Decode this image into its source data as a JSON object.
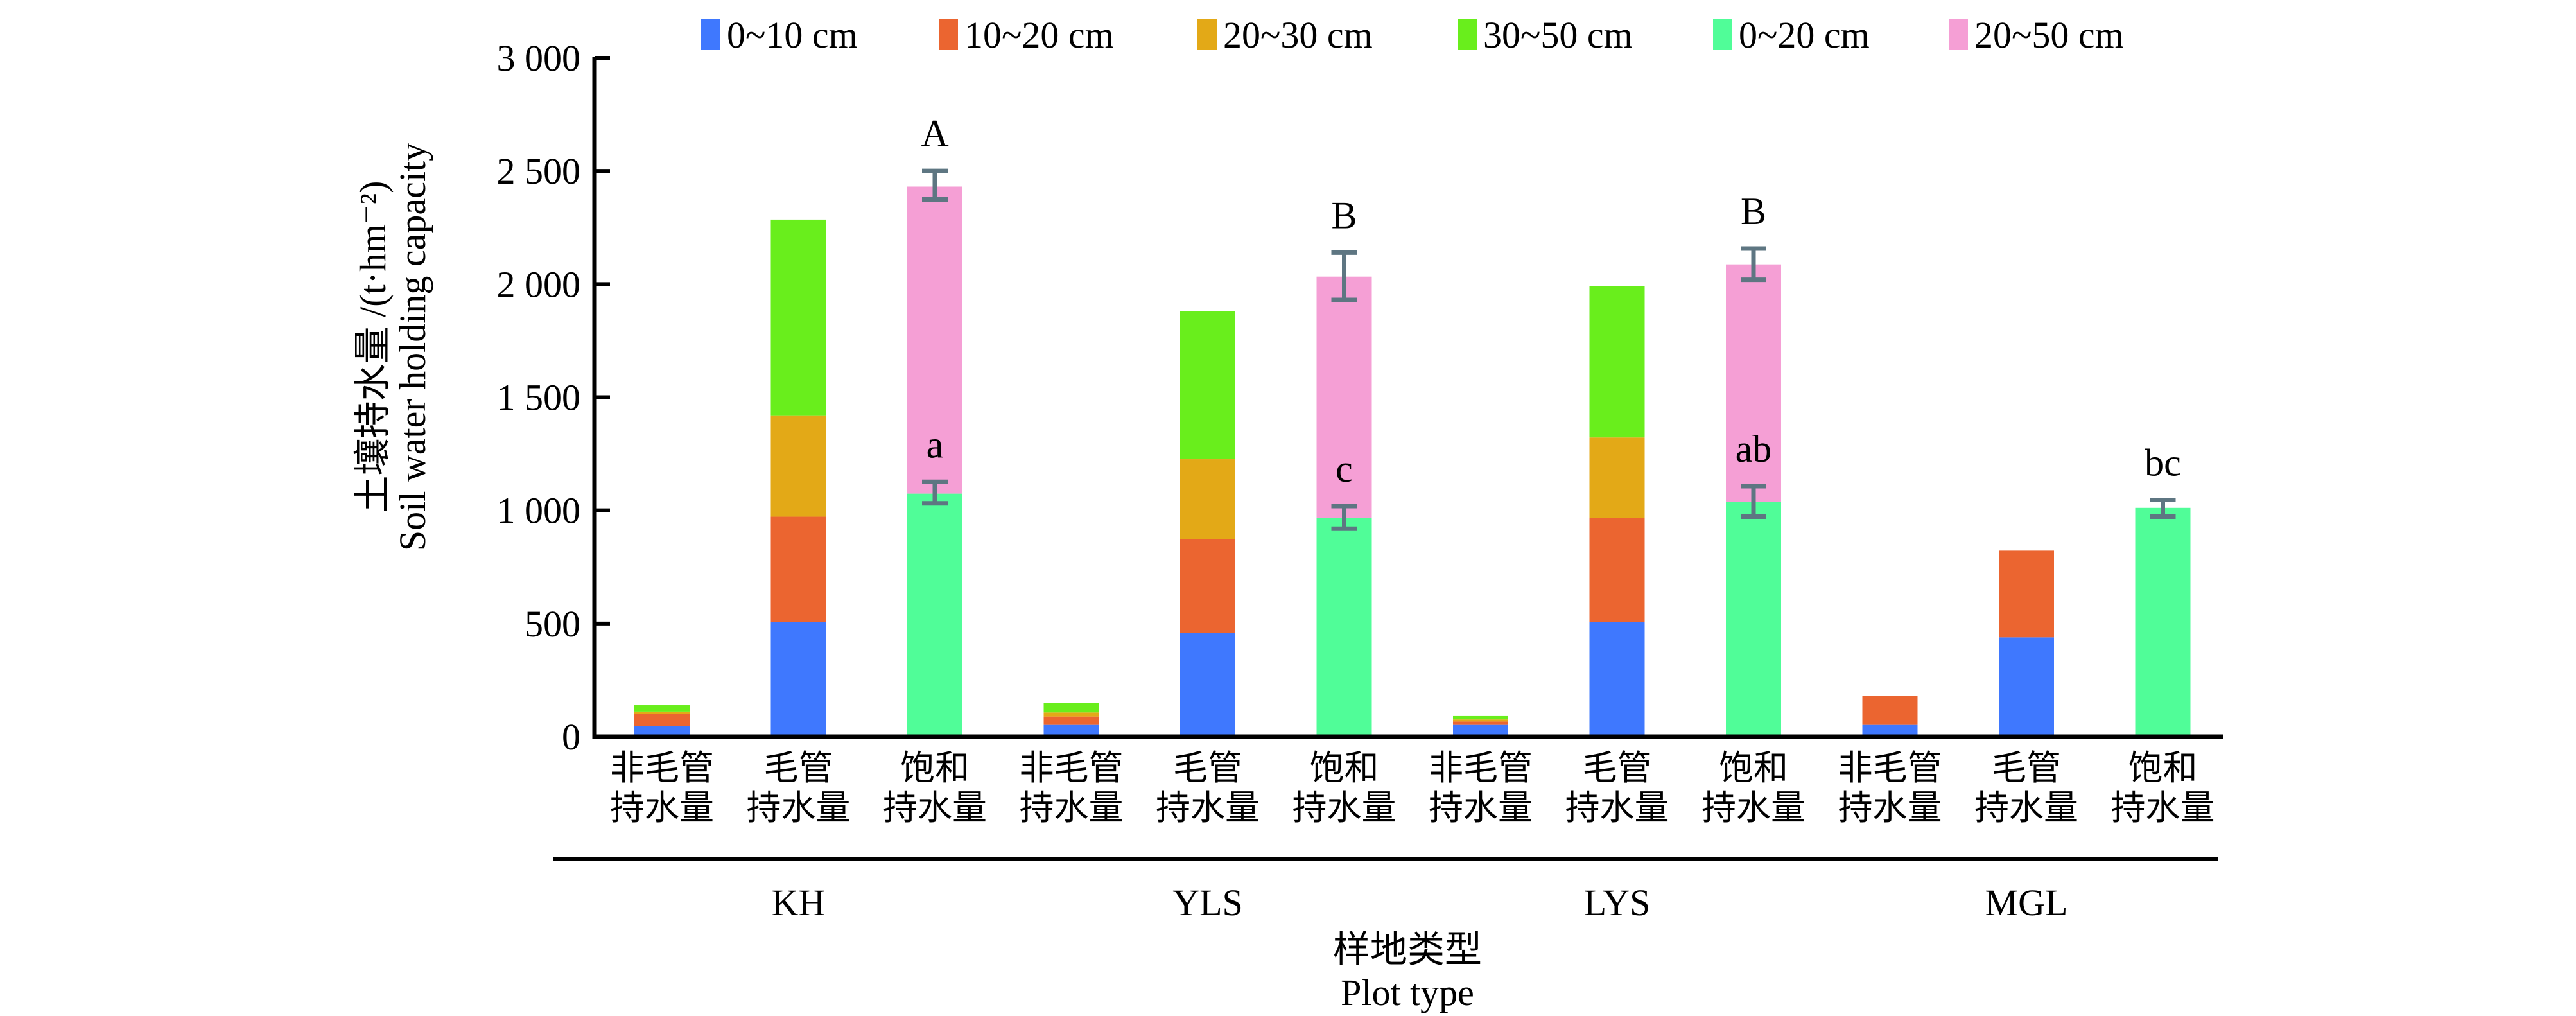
{
  "chart_data": {
    "type": "bar",
    "stacked": true,
    "title": "",
    "ylabel_cn": "土壤持水量 /(t·hm⁻²)",
    "ylabel_en": "Soil water holding capacity",
    "xlabel_cn": "样地类型",
    "xlabel_en": "Plot type",
    "ylim": [
      0,
      3000
    ],
    "yticks": [
      0,
      500,
      1000,
      1500,
      2000,
      2500,
      3000
    ],
    "ytick_labels": [
      "0",
      "500",
      "1 000",
      "1 500",
      "2 000",
      "2 500",
      "3 000"
    ],
    "grid": false,
    "legend_position": "top",
    "legend": [
      {
        "name": "0~10 cm",
        "color": "#3F78FE"
      },
      {
        "name": "10~20 cm",
        "color": "#EB6530"
      },
      {
        "name": "20~30 cm",
        "color": "#E3A917"
      },
      {
        "name": "30~50 cm",
        "color": "#69EE1C"
      },
      {
        "name": "0~20 cm",
        "color": "#50FD98"
      },
      {
        "name": "20~50 cm",
        "color": "#F59FD5"
      }
    ],
    "category_types": [
      {
        "line1": "非毛管",
        "line2": "持水量"
      },
      {
        "line1": "毛管",
        "line2": "持水量"
      },
      {
        "line1": "饱和",
        "line2": "持水量"
      }
    ],
    "groups": [
      {
        "name": "KH",
        "bars": [
          {
            "type": "非毛管持水量",
            "segments": {
              "0~10 cm": 46,
              "10~20 cm": 56,
              "20~30 cm": 9,
              "30~50 cm": 28
            }
          },
          {
            "type": "毛管持水量",
            "segments": {
              "0~10 cm": 506,
              "10~20 cm": 466,
              "20~30 cm": 448,
              "30~50 cm": 865
            }
          },
          {
            "type": "饱和持水量",
            "segments": {
              "0~20 cm": 1074,
              "20~50 cm": 1357
            },
            "errors": {
              "0~20 cm": [
                1031,
                1126
              ],
              "20~50 cm": [
                2374,
                2500
              ]
            },
            "sig_lower": "a",
            "sig_upper": "A"
          }
        ]
      },
      {
        "name": "YLS",
        "bars": [
          {
            "type": "非毛管持水量",
            "segments": {
              "0~10 cm": 52,
              "10~20 cm": 37,
              "20~30 cm": 18,
              "30~50 cm": 41
            }
          },
          {
            "type": "毛管持水量",
            "segments": {
              "0~10 cm": 457,
              "10~20 cm": 415,
              "20~30 cm": 354,
              "30~50 cm": 654
            }
          },
          {
            "type": "饱和持水量",
            "segments": {
              "0~20 cm": 967,
              "20~50 cm": 1066
            },
            "errors": {
              "0~20 cm": [
                919,
                1019
              ],
              "20~50 cm": [
                1930,
                2139
              ]
            },
            "sig_lower": "c",
            "sig_upper": "B"
          }
        ]
      },
      {
        "name": "LYS",
        "bars": [
          {
            "type": "非毛管持水量",
            "segments": {
              "0~10 cm": 52,
              "10~20 cm": 15,
              "20~30 cm": 9,
              "30~50 cm": 15
            }
          },
          {
            "type": "毛管持水量",
            "segments": {
              "0~10 cm": 507,
              "10~20 cm": 460,
              "20~30 cm": 355,
              "30~50 cm": 669
            }
          },
          {
            "type": "饱和持水量",
            "segments": {
              "0~20 cm": 1037,
              "20~50 cm": 1050
            },
            "errors": {
              "0~20 cm": [
                972,
                1107
              ],
              "20~50 cm": [
                2019,
                2157
              ]
            },
            "sig_lower": "ab",
            "sig_upper": "B"
          }
        ]
      },
      {
        "name": "MGL",
        "bars": [
          {
            "type": "非毛管持水量",
            "segments": {
              "0~10 cm": 52,
              "10~20 cm": 129
            }
          },
          {
            "type": "毛管持水量",
            "segments": {
              "0~10 cm": 439,
              "10~20 cm": 383
            }
          },
          {
            "type": "饱和持水量",
            "segments": {
              "0~20 cm": 1011
            },
            "errors": {
              "0~20 cm": [
                972,
                1046
              ]
            },
            "sig_lower": "bc"
          }
        ]
      }
    ],
    "error_bar_color": "#5E7682"
  }
}
